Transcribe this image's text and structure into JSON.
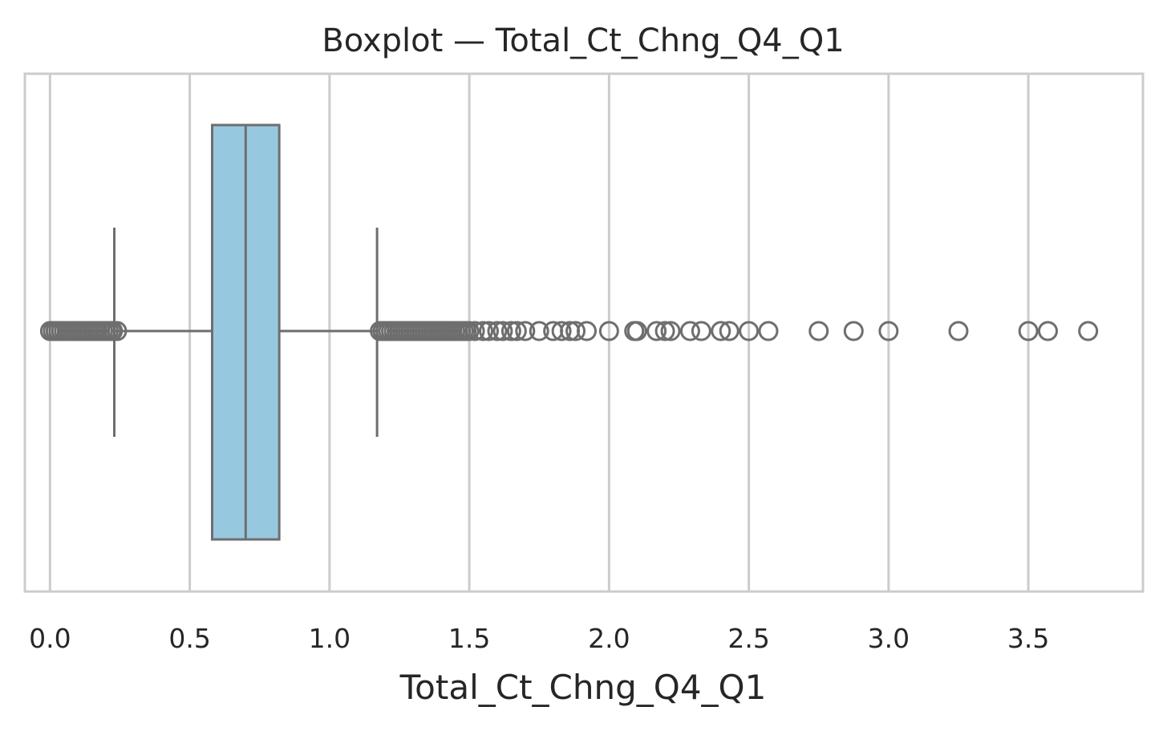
{
  "chart_data": {
    "type": "boxplot",
    "title": "Boxplot — Total_Ct_Chng_Q4_Q1",
    "xlabel": "Total_Ct_Chng_Q4_Q1",
    "ylabel": "",
    "xlim": [
      -0.09,
      3.91
    ],
    "xticks": [
      0.0,
      0.5,
      1.0,
      1.5,
      2.0,
      2.5,
      3.0,
      3.5
    ],
    "xtick_labels": [
      "0.0",
      "0.5",
      "1.0",
      "1.5",
      "2.0",
      "2.5",
      "3.0",
      "3.5"
    ],
    "grid": true,
    "orientation": "horizontal",
    "box": {
      "whisker_low": 0.23,
      "q1": 0.58,
      "median": 0.7,
      "q3": 0.82,
      "whisker_high": 1.17,
      "fill_color": "#96c9df",
      "line_color": "#6e6e6e"
    },
    "outliers": [
      0.0,
      0.01,
      0.02,
      0.03,
      0.04,
      0.05,
      0.06,
      0.07,
      0.08,
      0.09,
      0.1,
      0.11,
      0.12,
      0.13,
      0.14,
      0.15,
      0.16,
      0.17,
      0.18,
      0.19,
      0.2,
      0.21,
      0.22,
      0.225,
      0.24,
      1.18,
      1.19,
      1.2,
      1.21,
      1.22,
      1.23,
      1.24,
      1.25,
      1.26,
      1.27,
      1.28,
      1.29,
      1.3,
      1.31,
      1.32,
      1.33,
      1.34,
      1.35,
      1.36,
      1.37,
      1.38,
      1.39,
      1.4,
      1.41,
      1.42,
      1.43,
      1.44,
      1.45,
      1.46,
      1.47,
      1.48,
      1.49,
      1.5,
      1.52,
      1.55,
      1.57,
      1.6,
      1.62,
      1.65,
      1.67,
      1.7,
      1.75,
      1.8,
      1.83,
      1.86,
      1.88,
      1.92,
      2.0,
      2.09,
      2.1,
      2.17,
      2.2,
      2.22,
      2.29,
      2.33,
      2.4,
      2.43,
      2.5,
      2.57,
      2.75,
      2.875,
      3.0,
      3.25,
      3.5,
      3.57,
      3.714
    ]
  }
}
